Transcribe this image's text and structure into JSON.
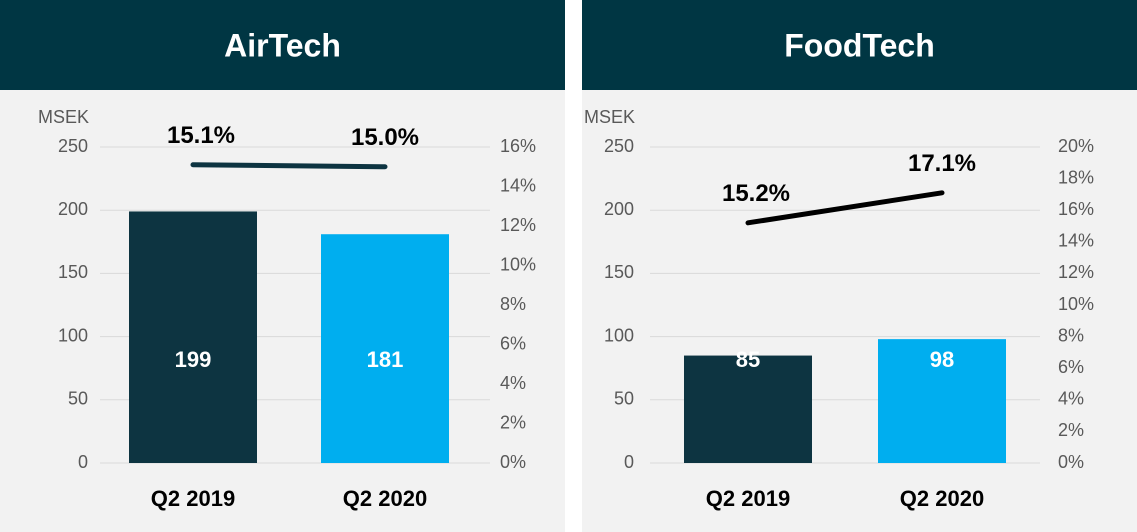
{
  "chart_data": [
    {
      "type": "bar",
      "title": "AirTech",
      "y_label": "MSEK",
      "categories": [
        "Q2 2019",
        "Q2 2020"
      ],
      "series": [
        {
          "type": "bar",
          "colors": [
            "#0d3441",
            "#00aeef"
          ],
          "values": [
            199,
            181
          ]
        },
        {
          "type": "line",
          "axis": "y2",
          "color": "#0d3441",
          "values": [
            15.1,
            15.0
          ],
          "value_labels": [
            "15.1%",
            "15.0%"
          ]
        }
      ],
      "ylim": [
        0,
        250
      ],
      "yticks": [
        0,
        50,
        100,
        150,
        200,
        250
      ],
      "y2lim": [
        0,
        16
      ],
      "y2ticks": [
        {
          "value": 0,
          "label": "0%"
        },
        {
          "value": 2,
          "label": "2%"
        },
        {
          "value": 4,
          "label": "4%"
        },
        {
          "value": 6,
          "label": "6%"
        },
        {
          "value": 8,
          "label": "8%"
        },
        {
          "value": 10,
          "label": "10%"
        },
        {
          "value": 12,
          "label": "12%"
        },
        {
          "value": 14,
          "label": "14%"
        },
        {
          "value": 16,
          "label": "16%"
        }
      ],
      "grid": true
    },
    {
      "type": "bar",
      "title": "FoodTech",
      "y_label": "MSEK",
      "categories": [
        "Q2 2019",
        "Q2 2020"
      ],
      "series": [
        {
          "type": "bar",
          "colors": [
            "#0d3441",
            "#00aeef"
          ],
          "values": [
            85,
            98
          ]
        },
        {
          "type": "line",
          "axis": "y2",
          "color": "#000000",
          "values": [
            15.2,
            17.1
          ],
          "value_labels": [
            "15.2%",
            "17.1%"
          ]
        }
      ],
      "ylim": [
        0,
        250
      ],
      "yticks": [
        0,
        50,
        100,
        150,
        200,
        250
      ],
      "y2lim": [
        0,
        20
      ],
      "y2ticks": [
        {
          "value": 0,
          "label": "0%"
        },
        {
          "value": 2,
          "label": "2%"
        },
        {
          "value": 4,
          "label": "4%"
        },
        {
          "value": 6,
          "label": "6%"
        },
        {
          "value": 8,
          "label": "8%"
        },
        {
          "value": 10,
          "label": "10%"
        },
        {
          "value": 12,
          "label": "12%"
        },
        {
          "value": 14,
          "label": "14%"
        },
        {
          "value": 16,
          "label": "16%"
        },
        {
          "value": 18,
          "label": "18%"
        },
        {
          "value": 20,
          "label": "20%"
        }
      ],
      "grid": true
    }
  ]
}
